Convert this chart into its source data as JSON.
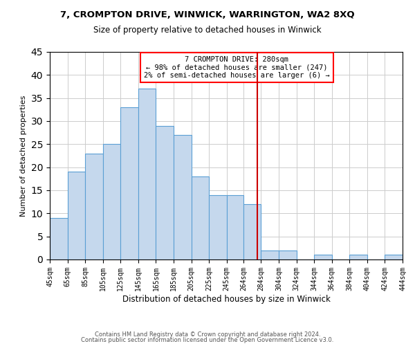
{
  "title1": "7, CROMPTON DRIVE, WINWICK, WARRINGTON, WA2 8XQ",
  "title2": "Size of property relative to detached houses in Winwick",
  "xlabel": "Distribution of detached houses by size in Winwick",
  "ylabel": "Number of detached properties",
  "bar_heights": [
    9,
    19,
    23,
    25,
    33,
    37,
    29,
    27,
    18,
    14,
    14,
    12,
    2,
    2,
    0,
    1,
    0,
    1,
    0,
    1
  ],
  "bin_edges": [
    45,
    65,
    85,
    105,
    125,
    145,
    165,
    185,
    205,
    225,
    245,
    264,
    284,
    304,
    324,
    344,
    364,
    384,
    404,
    424,
    444
  ],
  "tick_labels": [
    "45sqm",
    "65sqm",
    "85sqm",
    "105sqm",
    "125sqm",
    "145sqm",
    "165sqm",
    "185sqm",
    "205sqm",
    "225sqm",
    "245sqm",
    "264sqm",
    "284sqm",
    "304sqm",
    "324sqm",
    "344sqm",
    "364sqm",
    "384sqm",
    "404sqm",
    "424sqm",
    "444sqm"
  ],
  "bar_color": "#c5d8ed",
  "bar_edge_color": "#5a9fd4",
  "vline_x": 280,
  "vline_color": "#cc0000",
  "ylim": [
    0,
    45
  ],
  "yticks": [
    0,
    5,
    10,
    15,
    20,
    25,
    30,
    35,
    40,
    45
  ],
  "annotation_title": "7 CROMPTON DRIVE: 280sqm",
  "annotation_line1": "← 98% of detached houses are smaller (247)",
  "annotation_line2": "2% of semi-detached houses are larger (6) →",
  "footer1": "Contains HM Land Registry data © Crown copyright and database right 2024.",
  "footer2": "Contains public sector information licensed under the Open Government Licence v3.0.",
  "bg_color": "#ffffff",
  "grid_color": "#cccccc",
  "title1_fontsize": 9.5,
  "title2_fontsize": 8.5,
  "xlabel_fontsize": 8.5,
  "ylabel_fontsize": 8.0,
  "tick_fontsize": 7.0,
  "footer_fontsize": 6.0
}
